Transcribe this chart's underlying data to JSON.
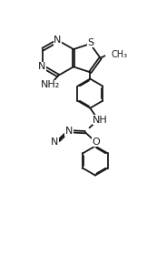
{
  "bg_color": "#ffffff",
  "line_color": "#1a1a1a",
  "line_width": 1.3,
  "font_size": 7.0,
  "fig_width": 1.62,
  "fig_height": 2.8,
  "dpi": 100,
  "xlim": [
    0,
    10
  ],
  "ylim": [
    0,
    17.3
  ]
}
